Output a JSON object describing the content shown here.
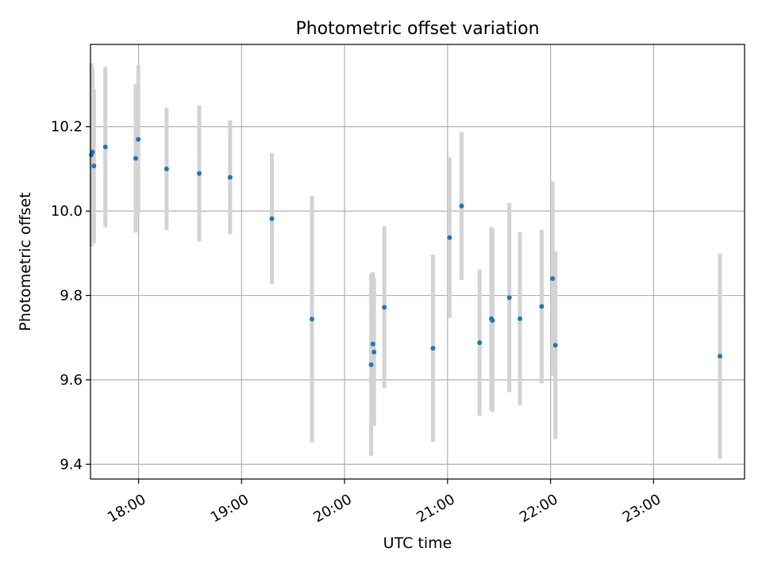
{
  "chart_data": {
    "type": "scatter",
    "title": "Photometric offset variation",
    "xlabel": "UTC time",
    "ylabel": "Photometric offset",
    "xlim": [
      "17:32",
      "23:53"
    ],
    "ylim": [
      9.365,
      10.395
    ],
    "x_ticks": [
      "18:00",
      "19:00",
      "20:00",
      "21:00",
      "22:00",
      "23:00"
    ],
    "y_ticks": [
      9.4,
      9.6,
      9.8,
      10.0,
      10.2
    ],
    "grid": true,
    "colors": {
      "marker": "#1f77b4",
      "errorbar": "#d3d3d3",
      "grid": "#b0b0b0"
    },
    "series": [
      {
        "points": [
          {
            "t": "17:32:30",
            "y": 10.133,
            "err": 0.217
          },
          {
            "t": "17:33:10",
            "y": 10.14,
            "err": 0.2
          },
          {
            "t": "17:34:00",
            "y": 10.107,
            "err": 0.183
          },
          {
            "t": "17:40:40",
            "y": 10.152,
            "err": 0.19
          },
          {
            "t": "17:58:20",
            "y": 10.125,
            "err": 0.176
          },
          {
            "t": "17:59:50",
            "y": 10.17,
            "err": 0.176
          },
          {
            "t": "18:16:20",
            "y": 10.1,
            "err": 0.145
          },
          {
            "t": "18:35:20",
            "y": 10.089,
            "err": 0.161
          },
          {
            "t": "18:53:20",
            "y": 10.08,
            "err": 0.135
          },
          {
            "t": "19:17:40",
            "y": 9.982,
            "err": 0.155
          },
          {
            "t": "19:41:00",
            "y": 9.744,
            "err": 0.292
          },
          {
            "t": "20:15:30",
            "y": 9.636,
            "err": 0.216
          },
          {
            "t": "20:16:30",
            "y": 9.685,
            "err": 0.17
          },
          {
            "t": "20:17:10",
            "y": 9.666,
            "err": 0.175
          },
          {
            "t": "20:23:10",
            "y": 9.772,
            "err": 0.192
          },
          {
            "t": "20:51:30",
            "y": 9.675,
            "err": 0.222
          },
          {
            "t": "21:01:10",
            "y": 9.937,
            "err": 0.19
          },
          {
            "t": "21:08:10",
            "y": 10.012,
            "err": 0.175
          },
          {
            "t": "21:18:40",
            "y": 9.688,
            "err": 0.173
          },
          {
            "t": "21:25:30",
            "y": 9.745,
            "err": 0.217
          },
          {
            "t": "21:26:10",
            "y": 9.741,
            "err": 0.217
          },
          {
            "t": "21:36:00",
            "y": 9.795,
            "err": 0.224
          },
          {
            "t": "21:42:10",
            "y": 9.745,
            "err": 0.205
          },
          {
            "t": "21:54:50",
            "y": 9.774,
            "err": 0.182
          },
          {
            "t": "22:01:10",
            "y": 9.84,
            "err": 0.23
          },
          {
            "t": "22:02:50",
            "y": 9.682,
            "err": 0.222
          },
          {
            "t": "23:38:40",
            "y": 9.656,
            "err": 0.243
          }
        ]
      }
    ]
  }
}
